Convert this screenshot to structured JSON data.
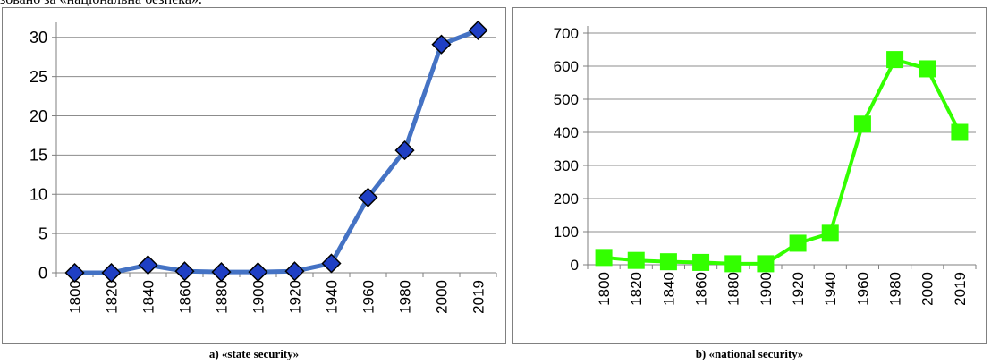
{
  "header_fragment": "зовано за «національна безпека».",
  "captions": {
    "a": "a) «state security»",
    "b": "b) «national security»"
  },
  "chart_data": [
    {
      "id": "a",
      "type": "line",
      "title": "",
      "xlabel": "",
      "ylabel": "",
      "categories": [
        "1800",
        "1820",
        "1840",
        "1860",
        "1880",
        "1900",
        "1920",
        "1940",
        "1960",
        "1980",
        "2000",
        "2019"
      ],
      "ylim": [
        0,
        30
      ],
      "ylim_display": [
        0,
        31
      ],
      "yticks": [
        0,
        5,
        10,
        15,
        20,
        25,
        30
      ],
      "grid": true,
      "legend": "none",
      "series": [
        {
          "values": [
            0,
            0,
            1,
            0.2,
            0.1,
            0.1,
            0.2,
            1.2,
            9.6,
            15.6,
            29.1,
            30.9
          ],
          "line_color": "#4472C4",
          "marker": "diamond",
          "marker_color": "#1F3FC4"
        }
      ]
    },
    {
      "id": "b",
      "type": "line",
      "title": "",
      "xlabel": "",
      "ylabel": "",
      "categories": [
        "1800",
        "1820",
        "1840",
        "1860",
        "1880",
        "1900",
        "1920",
        "1940",
        "1960",
        "1980",
        "2000",
        "2019"
      ],
      "ylim": [
        0,
        700
      ],
      "yticks": [
        0,
        100,
        200,
        300,
        400,
        500,
        600,
        700
      ],
      "grid": true,
      "legend": "none",
      "series": [
        {
          "values": [
            22,
            13,
            9,
            7,
            3,
            3,
            65,
            95,
            425,
            620,
            592,
            400
          ],
          "line_color": "#33FF00",
          "marker": "square",
          "marker_color": "#33FF00"
        }
      ]
    }
  ]
}
